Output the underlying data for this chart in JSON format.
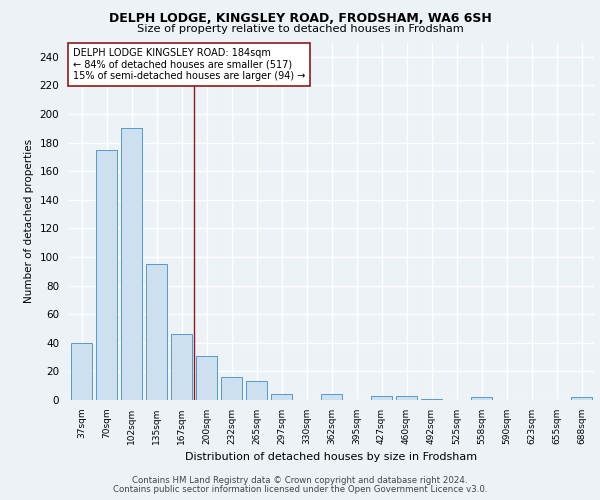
{
  "title1": "DELPH LODGE, KINGSLEY ROAD, FRODSHAM, WA6 6SH",
  "title2": "Size of property relative to detached houses in Frodsham",
  "xlabel": "Distribution of detached houses by size in Frodsham",
  "ylabel": "Number of detached properties",
  "categories": [
    "37sqm",
    "70sqm",
    "102sqm",
    "135sqm",
    "167sqm",
    "200sqm",
    "232sqm",
    "265sqm",
    "297sqm",
    "330sqm",
    "362sqm",
    "395sqm",
    "427sqm",
    "460sqm",
    "492sqm",
    "525sqm",
    "558sqm",
    "590sqm",
    "623sqm",
    "655sqm",
    "688sqm"
  ],
  "values": [
    40,
    175,
    190,
    95,
    46,
    31,
    16,
    13,
    4,
    0,
    4,
    0,
    3,
    3,
    1,
    0,
    2,
    0,
    0,
    0,
    2
  ],
  "bar_color": "#cce0f0",
  "bar_edge_color": "#5599cc",
  "ylim": [
    0,
    250
  ],
  "yticks": [
    0,
    20,
    40,
    60,
    80,
    100,
    120,
    140,
    160,
    180,
    200,
    220,
    240
  ],
  "vline_color": "#8b1a1a",
  "vline_bin_index": 4,
  "annotation_title": "DELPH LODGE KINGSLEY ROAD: 184sqm",
  "annotation_line1": "← 84% of detached houses are smaller (517)",
  "annotation_line2": "15% of semi-detached houses are larger (94) →",
  "annotation_box_color": "#ffffff",
  "annotation_box_edge": "#8b1a1a",
  "footer1": "Contains HM Land Registry data © Crown copyright and database right 2024.",
  "footer2": "Contains public sector information licensed under the Open Government Licence v3.0.",
  "background_color": "#edf2f7",
  "grid_color": "#ffffff"
}
